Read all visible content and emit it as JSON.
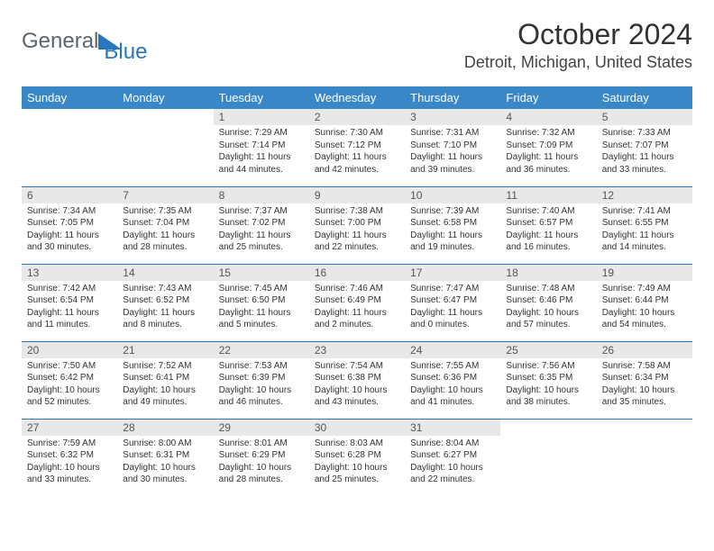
{
  "brand": {
    "part1": "General",
    "part2": "Blue"
  },
  "title": "October 2024",
  "location": "Detroit, Michigan, United States",
  "colors": {
    "header_bg": "#3a87c8",
    "accent": "#2876bd",
    "daynum_bg": "#e8e8e8",
    "text": "#333333",
    "logo_gray": "#5a6570"
  },
  "day_headers": [
    "Sunday",
    "Monday",
    "Tuesday",
    "Wednesday",
    "Thursday",
    "Friday",
    "Saturday"
  ],
  "weeks": [
    [
      null,
      null,
      {
        "n": "1",
        "sr": "Sunrise: 7:29 AM",
        "ss": "Sunset: 7:14 PM",
        "dl": "Daylight: 11 hours and 44 minutes."
      },
      {
        "n": "2",
        "sr": "Sunrise: 7:30 AM",
        "ss": "Sunset: 7:12 PM",
        "dl": "Daylight: 11 hours and 42 minutes."
      },
      {
        "n": "3",
        "sr": "Sunrise: 7:31 AM",
        "ss": "Sunset: 7:10 PM",
        "dl": "Daylight: 11 hours and 39 minutes."
      },
      {
        "n": "4",
        "sr": "Sunrise: 7:32 AM",
        "ss": "Sunset: 7:09 PM",
        "dl": "Daylight: 11 hours and 36 minutes."
      },
      {
        "n": "5",
        "sr": "Sunrise: 7:33 AM",
        "ss": "Sunset: 7:07 PM",
        "dl": "Daylight: 11 hours and 33 minutes."
      }
    ],
    [
      {
        "n": "6",
        "sr": "Sunrise: 7:34 AM",
        "ss": "Sunset: 7:05 PM",
        "dl": "Daylight: 11 hours and 30 minutes."
      },
      {
        "n": "7",
        "sr": "Sunrise: 7:35 AM",
        "ss": "Sunset: 7:04 PM",
        "dl": "Daylight: 11 hours and 28 minutes."
      },
      {
        "n": "8",
        "sr": "Sunrise: 7:37 AM",
        "ss": "Sunset: 7:02 PM",
        "dl": "Daylight: 11 hours and 25 minutes."
      },
      {
        "n": "9",
        "sr": "Sunrise: 7:38 AM",
        "ss": "Sunset: 7:00 PM",
        "dl": "Daylight: 11 hours and 22 minutes."
      },
      {
        "n": "10",
        "sr": "Sunrise: 7:39 AM",
        "ss": "Sunset: 6:58 PM",
        "dl": "Daylight: 11 hours and 19 minutes."
      },
      {
        "n": "11",
        "sr": "Sunrise: 7:40 AM",
        "ss": "Sunset: 6:57 PM",
        "dl": "Daylight: 11 hours and 16 minutes."
      },
      {
        "n": "12",
        "sr": "Sunrise: 7:41 AM",
        "ss": "Sunset: 6:55 PM",
        "dl": "Daylight: 11 hours and 14 minutes."
      }
    ],
    [
      {
        "n": "13",
        "sr": "Sunrise: 7:42 AM",
        "ss": "Sunset: 6:54 PM",
        "dl": "Daylight: 11 hours and 11 minutes."
      },
      {
        "n": "14",
        "sr": "Sunrise: 7:43 AM",
        "ss": "Sunset: 6:52 PM",
        "dl": "Daylight: 11 hours and 8 minutes."
      },
      {
        "n": "15",
        "sr": "Sunrise: 7:45 AM",
        "ss": "Sunset: 6:50 PM",
        "dl": "Daylight: 11 hours and 5 minutes."
      },
      {
        "n": "16",
        "sr": "Sunrise: 7:46 AM",
        "ss": "Sunset: 6:49 PM",
        "dl": "Daylight: 11 hours and 2 minutes."
      },
      {
        "n": "17",
        "sr": "Sunrise: 7:47 AM",
        "ss": "Sunset: 6:47 PM",
        "dl": "Daylight: 11 hours and 0 minutes."
      },
      {
        "n": "18",
        "sr": "Sunrise: 7:48 AM",
        "ss": "Sunset: 6:46 PM",
        "dl": "Daylight: 10 hours and 57 minutes."
      },
      {
        "n": "19",
        "sr": "Sunrise: 7:49 AM",
        "ss": "Sunset: 6:44 PM",
        "dl": "Daylight: 10 hours and 54 minutes."
      }
    ],
    [
      {
        "n": "20",
        "sr": "Sunrise: 7:50 AM",
        "ss": "Sunset: 6:42 PM",
        "dl": "Daylight: 10 hours and 52 minutes."
      },
      {
        "n": "21",
        "sr": "Sunrise: 7:52 AM",
        "ss": "Sunset: 6:41 PM",
        "dl": "Daylight: 10 hours and 49 minutes."
      },
      {
        "n": "22",
        "sr": "Sunrise: 7:53 AM",
        "ss": "Sunset: 6:39 PM",
        "dl": "Daylight: 10 hours and 46 minutes."
      },
      {
        "n": "23",
        "sr": "Sunrise: 7:54 AM",
        "ss": "Sunset: 6:38 PM",
        "dl": "Daylight: 10 hours and 43 minutes."
      },
      {
        "n": "24",
        "sr": "Sunrise: 7:55 AM",
        "ss": "Sunset: 6:36 PM",
        "dl": "Daylight: 10 hours and 41 minutes."
      },
      {
        "n": "25",
        "sr": "Sunrise: 7:56 AM",
        "ss": "Sunset: 6:35 PM",
        "dl": "Daylight: 10 hours and 38 minutes."
      },
      {
        "n": "26",
        "sr": "Sunrise: 7:58 AM",
        "ss": "Sunset: 6:34 PM",
        "dl": "Daylight: 10 hours and 35 minutes."
      }
    ],
    [
      {
        "n": "27",
        "sr": "Sunrise: 7:59 AM",
        "ss": "Sunset: 6:32 PM",
        "dl": "Daylight: 10 hours and 33 minutes."
      },
      {
        "n": "28",
        "sr": "Sunrise: 8:00 AM",
        "ss": "Sunset: 6:31 PM",
        "dl": "Daylight: 10 hours and 30 minutes."
      },
      {
        "n": "29",
        "sr": "Sunrise: 8:01 AM",
        "ss": "Sunset: 6:29 PM",
        "dl": "Daylight: 10 hours and 28 minutes."
      },
      {
        "n": "30",
        "sr": "Sunrise: 8:03 AM",
        "ss": "Sunset: 6:28 PM",
        "dl": "Daylight: 10 hours and 25 minutes."
      },
      {
        "n": "31",
        "sr": "Sunrise: 8:04 AM",
        "ss": "Sunset: 6:27 PM",
        "dl": "Daylight: 10 hours and 22 minutes."
      },
      null,
      null
    ]
  ]
}
